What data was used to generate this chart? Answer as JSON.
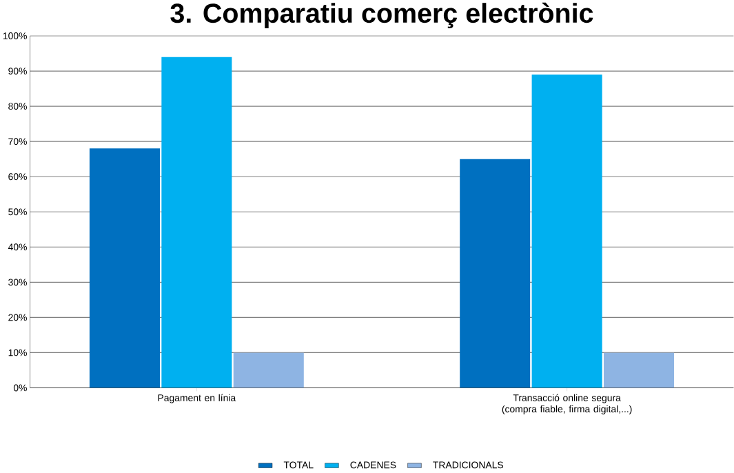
{
  "chart_data": {
    "type": "bar",
    "title": "3. Comparatiu comerç electrònic",
    "categories": [
      "Pagament en línia",
      "Transacció online segura (compra fiable, firma digital,...)"
    ],
    "series": [
      {
        "name": "TOTAL",
        "color": "#0070c0",
        "values": [
          68,
          65
        ]
      },
      {
        "name": "CADENES",
        "color": "#00b0f0",
        "values": [
          94,
          89
        ]
      },
      {
        "name": "TRADICIONALS",
        "color": "#8eb4e3",
        "values": [
          10,
          10
        ]
      }
    ],
    "ylim": [
      0,
      100
    ],
    "yticks": [
      {
        "value": 0,
        "label": "0%"
      },
      {
        "value": 10,
        "label": "10%"
      },
      {
        "value": 20,
        "label": "20%"
      },
      {
        "value": 30,
        "label": "30%"
      },
      {
        "value": 40,
        "label": "40%"
      },
      {
        "value": 50,
        "label": "50%"
      },
      {
        "value": 60,
        "label": "60%"
      },
      {
        "value": 70,
        "label": "70%"
      },
      {
        "value": 80,
        "label": "80%"
      },
      {
        "value": 90,
        "label": "90%"
      },
      {
        "value": 100,
        "label": "100%"
      }
    ],
    "grid": "y",
    "legend": "bottom"
  }
}
